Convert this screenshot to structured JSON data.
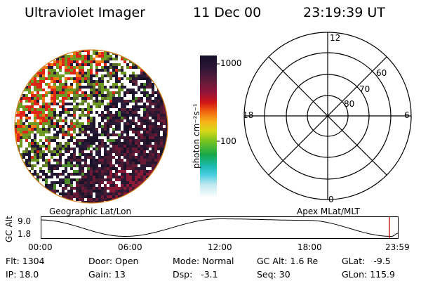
{
  "header": {
    "instrument": "Ultraviolet Imager",
    "date": "11 Dec 00",
    "time": "23:19:39 UT"
  },
  "colorbar": {
    "unit_label": "photon cm⁻²s⁻¹",
    "ticks": [
      "1000",
      "100"
    ]
  },
  "polar_plot": {
    "mlt_labels": {
      "top": "12",
      "left": "18",
      "right": "6",
      "bottom": "0"
    },
    "lat_labels": [
      "60",
      "70",
      "80"
    ]
  },
  "projection_labels": {
    "left": "Geographic Lat/Lon",
    "right": "Apex MLat/MLT"
  },
  "altitude_strip": {
    "axis_label": "GC Alt",
    "y_ticks": [
      "9.0",
      "1.8"
    ],
    "time_ticks": [
      "00:00",
      "06:00",
      "12:00",
      "18:00",
      "23:59"
    ],
    "marker_color": "#cc0000"
  },
  "status": {
    "col1": [
      {
        "label": "Flt:",
        "value": "1304"
      },
      {
        "label": "IP:",
        "value": "18.0"
      }
    ],
    "col2": [
      {
        "label": "Door:",
        "value": "Open"
      },
      {
        "label": "Gain:",
        "value": "13"
      }
    ],
    "col3": [
      {
        "label": "Mode:",
        "value": "Normal"
      },
      {
        "label": "Dsp:",
        "value": "-3.1"
      }
    ],
    "col4": [
      {
        "label": "GC Alt:",
        "value": "1.6 Re"
      },
      {
        "label": "Seq:",
        "value": "30"
      }
    ],
    "col5": [
      {
        "label": "GLat:",
        "value": "-9.5"
      },
      {
        "label": "GLon:",
        "value": "115.9"
      }
    ]
  }
}
